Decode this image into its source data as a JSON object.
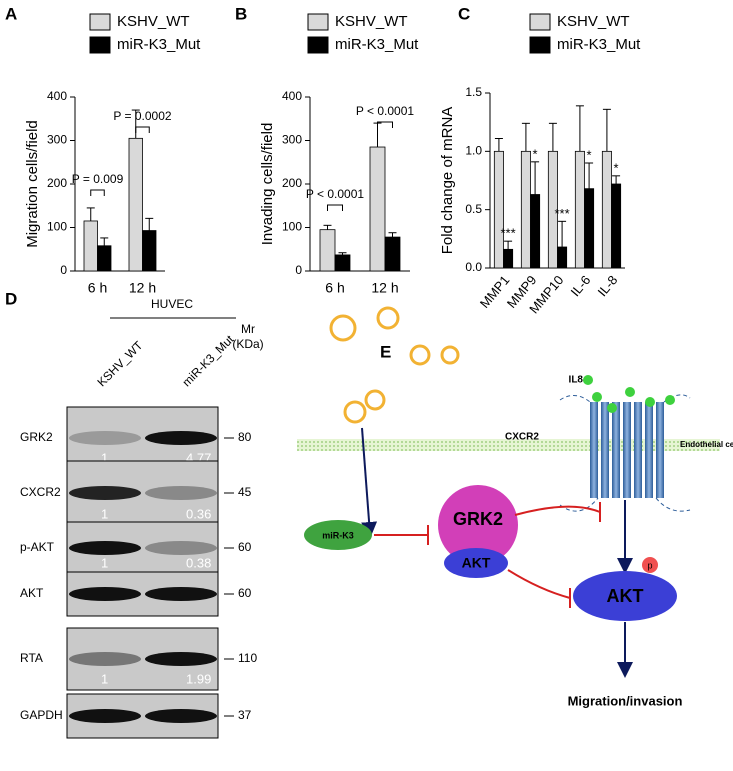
{
  "chart_data": [
    {
      "type": "bar",
      "panel_label": "A",
      "ylabel": "Migration cells/field",
      "categories": [
        "6 h",
        "12 h"
      ],
      "series": [
        {
          "name": "KSHV_WT",
          "color": "#d9d9d9",
          "values": [
            115,
            305
          ],
          "errors": [
            30,
            65
          ]
        },
        {
          "name": "miR-K3_Mut",
          "color": "#000000",
          "values": [
            58,
            93
          ],
          "errors": [
            18,
            28
          ]
        }
      ],
      "ylim": [
        0,
        400
      ],
      "yticks": [
        0,
        100,
        200,
        300,
        400
      ],
      "annotations": [
        "P = 0.009",
        "P = 0.0002"
      ]
    },
    {
      "type": "bar",
      "panel_label": "B",
      "ylabel": "Invading cells/field",
      "categories": [
        "6 h",
        "12 h"
      ],
      "series": [
        {
          "name": "KSHV_WT",
          "color": "#d9d9d9",
          "values": [
            95,
            285
          ],
          "errors": [
            10,
            55
          ]
        },
        {
          "name": "miR-K3_Mut",
          "color": "#000000",
          "values": [
            37,
            78
          ],
          "errors": [
            5,
            10
          ]
        }
      ],
      "ylim": [
        0,
        400
      ],
      "yticks": [
        0,
        100,
        200,
        300,
        400
      ],
      "annotations": [
        "P < 0.0001",
        "P < 0.0001"
      ]
    },
    {
      "type": "bar",
      "panel_label": "C",
      "ylabel": "Fold change of mRNA",
      "categories": [
        "MMP1",
        "MMP9",
        "MMP10",
        "IL-6",
        "IL-8"
      ],
      "series": [
        {
          "name": "KSHV_WT",
          "color": "#d9d9d9",
          "values": [
            1,
            1,
            1,
            1,
            1
          ],
          "errors": [
            0.11,
            0.24,
            0.24,
            0.39,
            0.36
          ]
        },
        {
          "name": "miR-K3_Mut",
          "color": "#000000",
          "values": [
            0.16,
            0.63,
            0.18,
            0.68,
            0.72
          ],
          "errors": [
            0.07,
            0.28,
            0.22,
            0.22,
            0.07
          ],
          "significance": [
            "***",
            "*",
            "***",
            "*",
            "*"
          ]
        }
      ],
      "ylim": [
        0,
        1.5
      ],
      "yticks": [
        {
          "value": 0,
          "label": "0.0"
        },
        0.5,
        {
          "value": 1,
          "label": "1.0"
        },
        1.5
      ]
    }
  ],
  "blot": {
    "panel_label": "D",
    "cell_line": "HUVEC",
    "lanes": [
      "KSHV_WT",
      "miR-K3_Mut"
    ],
    "mr_label": [
      "Mr",
      "(KDa)"
    ],
    "rows": [
      {
        "name": "GRK2",
        "mr": 80,
        "quant": [
          1,
          4.77
        ]
      },
      {
        "name": "CXCR2",
        "mr": 45,
        "quant": [
          1,
          0.36
        ]
      },
      {
        "name": "p-AKT",
        "mr": 60,
        "quant": [
          1,
          0.38
        ]
      },
      {
        "name": "AKT",
        "mr": 60
      },
      {
        "name": "RTA",
        "mr": 110,
        "quant": [
          1,
          1.99
        ]
      },
      {
        "name": "GAPDH",
        "mr": 37
      }
    ]
  },
  "diagram": {
    "panel_label": "E",
    "ligand": "IL8",
    "receptor": "CXCR2",
    "membrane": "Endothelial cell",
    "mirna": "miR-K3",
    "kinase": "GRK2",
    "bound": "AKT",
    "target": "AKT",
    "phospho": "p",
    "outcome": "Migration/invasion"
  }
}
